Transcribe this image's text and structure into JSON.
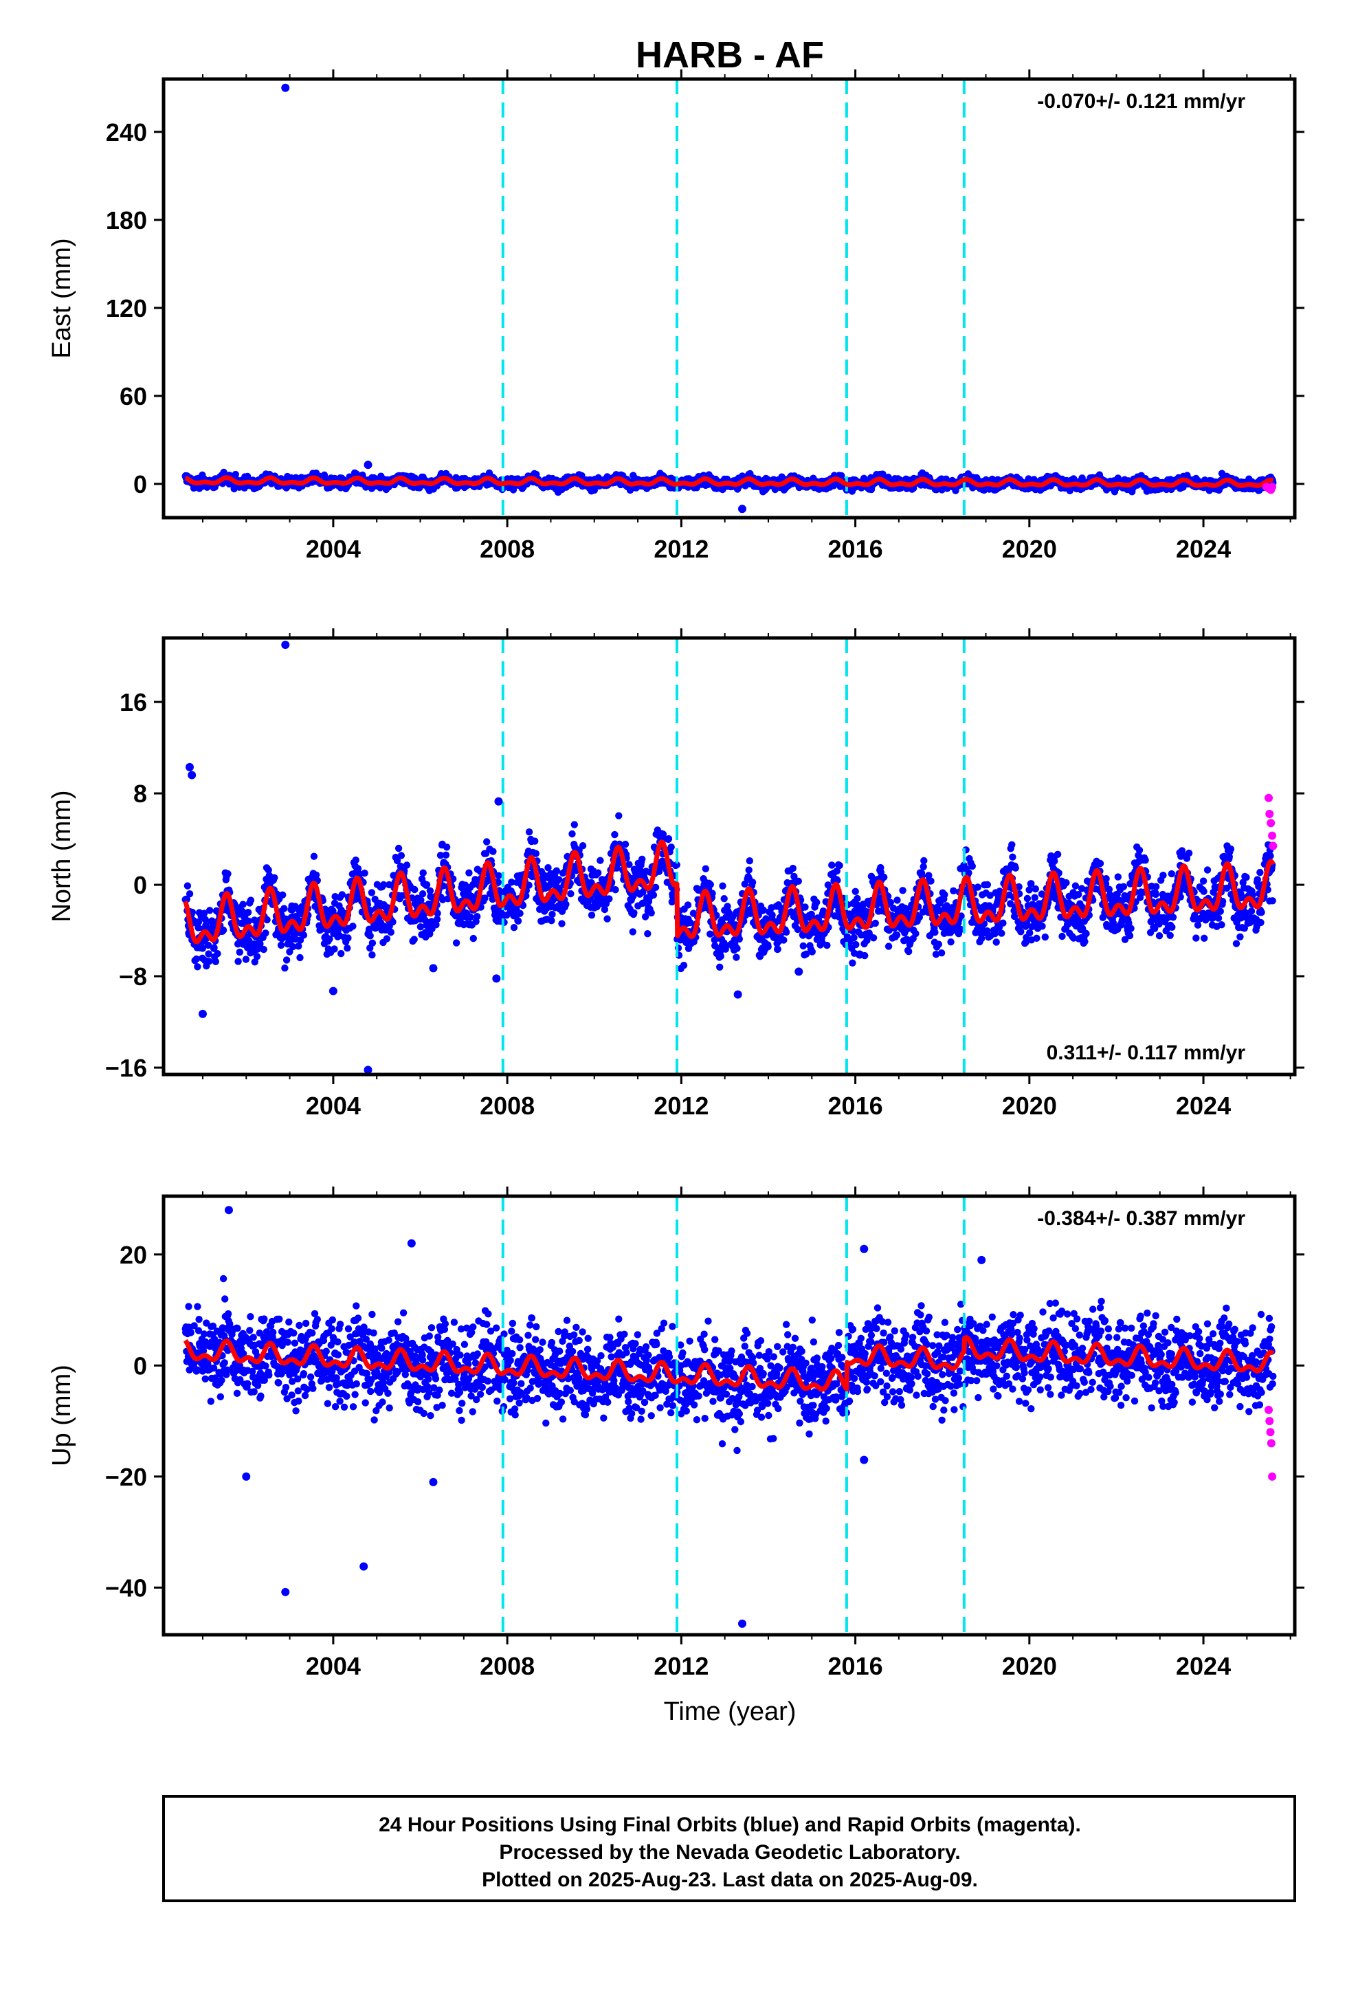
{
  "figure": {
    "title": "HARB - AF",
    "footer": [
      "24 Hour Positions Using Final Orbits (blue) and Rapid Orbits (magenta).",
      "Processed by the Nevada Geodetic Laboratory.",
      "Plotted on 2025-Aug-23. Last data on 2025-Aug-09."
    ],
    "colors": {
      "final": "#0000ff",
      "rapid": "#ff00ff",
      "model": "#ff0000",
      "steps": "#00e5ee"
    }
  },
  "chart_data": [
    {
      "type": "scatter",
      "ylabel": "East (mm)",
      "xlabel": "",
      "rate_text": "-0.070+/- 0.121 mm/yr",
      "xlim": [
        2000.1,
        2026.1
      ],
      "ylim": [
        -23,
        276
      ],
      "x_ticks": [
        2004,
        2008,
        2012,
        2016,
        2020,
        2024
      ],
      "x_tick_labels": [
        "2004",
        "2008",
        "2012",
        "2016",
        "2020",
        "2024"
      ],
      "y_ticks": [
        0,
        60,
        120,
        180,
        240
      ],
      "y_tick_labels": [
        "0",
        "60",
        "120",
        "180",
        "240"
      ],
      "step_lines": [
        2007.9,
        2011.9,
        2015.8,
        2018.5
      ],
      "data_start": 2000.6,
      "data_end": 2025.6,
      "trend": {
        "offset": 0.5,
        "rate": -0.07,
        "ref_year": 2013.0
      },
      "seasonal_amplitude": 2.5,
      "scatter_spread": 3,
      "rapid_points": [
        [
          2025.45,
          -2
        ],
        [
          2025.5,
          -3
        ],
        [
          2025.55,
          -4
        ],
        [
          2025.58,
          -2
        ]
      ],
      "outliers": [
        [
          2002.9,
          270
        ],
        [
          2004.8,
          13
        ],
        [
          2013.4,
          -17
        ]
      ]
    },
    {
      "type": "scatter",
      "ylabel": "North (mm)",
      "xlabel": "",
      "rate_text": "0.311+/- 0.117 mm/yr",
      "xlim": [
        2000.1,
        2026.1
      ],
      "ylim": [
        -16.6,
        21.6
      ],
      "x_ticks": [
        2004,
        2008,
        2012,
        2016,
        2020,
        2024
      ],
      "x_tick_labels": [
        "2004",
        "2008",
        "2012",
        "2016",
        "2020",
        "2024"
      ],
      "y_ticks": [
        -16,
        -8,
        0,
        8,
        16
      ],
      "y_tick_labels": [
        "−16",
        "−8",
        "0",
        "8",
        "16"
      ],
      "step_lines": [
        2007.9,
        2011.9,
        2015.8,
        2018.5
      ],
      "data_start": 2000.6,
      "data_end": 2025.6,
      "model_segments": [
        {
          "start": 2000.6,
          "end": 2011.9,
          "offset": -4.3,
          "rate": 0.45
        },
        {
          "start": 2011.9,
          "end": 2025.6,
          "offset": -3.8,
          "rate": 0.2
        }
      ],
      "seasonal_amplitude": 2.6,
      "scatter_spread": 2.0,
      "rapid_points": [
        [
          2025.5,
          7.6
        ],
        [
          2025.52,
          6.2
        ],
        [
          2025.55,
          5.4
        ],
        [
          2025.58,
          4.3
        ],
        [
          2025.6,
          3.4
        ]
      ],
      "outliers": [
        [
          2000.7,
          10.3
        ],
        [
          2000.75,
          9.6
        ],
        [
          2001.0,
          -11.3
        ],
        [
          2002.9,
          21.0
        ],
        [
          2004.0,
          -9.3
        ],
        [
          2004.8,
          -16.2
        ],
        [
          2007.8,
          7.3
        ],
        [
          2007.75,
          -8.2
        ],
        [
          2013.3,
          -9.6
        ],
        [
          2014.7,
          -7.6
        ],
        [
          2016.1,
          -6.1
        ],
        [
          2006.3,
          -7.3
        ]
      ]
    },
    {
      "type": "scatter",
      "ylabel": "Up (mm)",
      "xlabel": "Time (year)",
      "rate_text": "-0.384+/- 0.387 mm/yr",
      "xlim": [
        2000.1,
        2026.1
      ],
      "ylim": [
        -48.5,
        30.5
      ],
      "x_ticks": [
        2004,
        2008,
        2012,
        2016,
        2020,
        2024
      ],
      "x_tick_labels": [
        "2004",
        "2008",
        "2012",
        "2016",
        "2020",
        "2024"
      ],
      "y_ticks": [
        -40,
        -20,
        0,
        20
      ],
      "y_tick_labels": [
        "−40",
        "−20",
        "0",
        "20"
      ],
      "step_lines": [
        2007.9,
        2011.9,
        2015.8,
        2018.5
      ],
      "data_start": 2000.6,
      "data_end": 2025.6,
      "model_segments": [
        {
          "start": 2000.6,
          "end": 2015.8,
          "offset": 2.0,
          "rate": -0.38
        },
        {
          "start": 2015.8,
          "end": 2018.5,
          "offset": 1.1,
          "rate": -0.38
        },
        {
          "start": 2018.5,
          "end": 2025.6,
          "offset": 2.3,
          "rate": -0.38
        }
      ],
      "seasonal_amplitude": 2.3,
      "scatter_spread": 6,
      "rapid_points": [
        [
          2025.5,
          -8
        ],
        [
          2025.52,
          -10
        ],
        [
          2025.54,
          -12
        ],
        [
          2025.56,
          -14
        ],
        [
          2025.58,
          -20
        ]
      ],
      "outliers": [
        [
          2001.6,
          28
        ],
        [
          2002.9,
          -40.8
        ],
        [
          2004.7,
          -36.2
        ],
        [
          2013.4,
          -46.5
        ],
        [
          2005.8,
          22
        ],
        [
          2016.2,
          21
        ],
        [
          2018.9,
          19
        ],
        [
          2002.0,
          -20
        ],
        [
          2006.3,
          -21
        ],
        [
          2016.2,
          -17
        ]
      ]
    }
  ]
}
